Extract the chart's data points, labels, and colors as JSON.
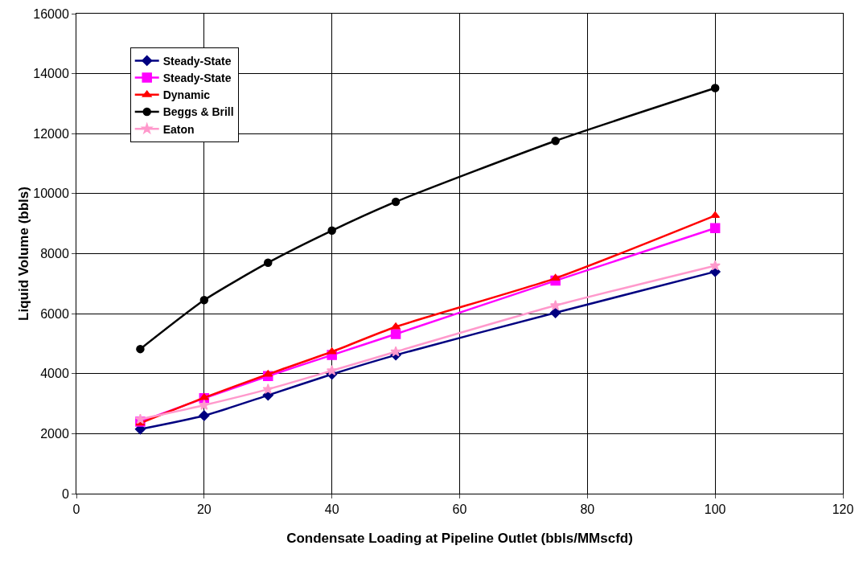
{
  "chart_data": {
    "type": "line",
    "xlabel": "Condensate Loading at Pipeline Outlet (bbls/MMscfd)",
    "ylabel": "Liquid Volume (bbls)",
    "x": [
      10,
      20,
      30,
      40,
      50,
      75,
      100
    ],
    "series": [
      {
        "name": "Steady-State",
        "color": "#000080",
        "marker": "diamond",
        "values": [
          2150,
          2600,
          3280,
          3980,
          4620,
          6030,
          7400
        ]
      },
      {
        "name": "Steady-State",
        "color": "#ff00ff",
        "marker": "square",
        "values": [
          2400,
          3180,
          3920,
          4620,
          5320,
          7100,
          8850
        ]
      },
      {
        "name": "Dynamic",
        "color": "#ff0000",
        "marker": "triangle",
        "values": [
          2350,
          3200,
          3980,
          4730,
          5560,
          7180,
          9270
        ]
      },
      {
        "name": "Beggs & Brill",
        "color": "#000000",
        "marker": "circle",
        "values": [
          4820,
          6450,
          7700,
          8770,
          9730,
          11760,
          13520
        ]
      },
      {
        "name": "Eaton",
        "color": "#ff99cc",
        "marker": "star",
        "values": [
          2480,
          2950,
          3480,
          4100,
          4730,
          6270,
          7600
        ]
      }
    ],
    "xlim": [
      0,
      120
    ],
    "xticks": [
      0,
      20,
      40,
      60,
      80,
      100,
      120
    ],
    "ylim": [
      0,
      16000
    ],
    "yticks": [
      0,
      2000,
      4000,
      6000,
      8000,
      10000,
      12000,
      14000,
      16000
    ],
    "grid": true,
    "legend": "top left",
    "line_style": "solid"
  }
}
